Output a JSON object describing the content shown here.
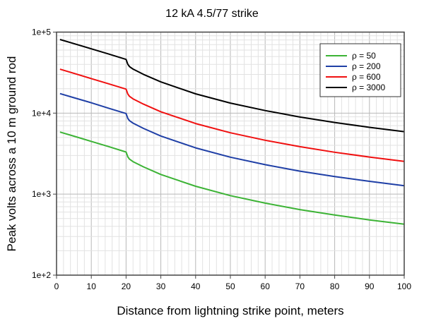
{
  "chart_data": {
    "type": "line",
    "title": "12 kA 4.5/77 strike",
    "xlabel": "Distance from lightning strike point, meters",
    "ylabel": "Peak volts across a 10 m ground rod",
    "xlim": [
      0,
      100
    ],
    "ylim": [
      100,
      100000
    ],
    "yscale": "log",
    "grid": true,
    "legend_position": "top-right",
    "x_ticks": [
      "0",
      "10",
      "20",
      "30",
      "40",
      "50",
      "60",
      "70",
      "80",
      "90",
      "100"
    ],
    "y_ticks": [
      "1e+2",
      "1e+3",
      "1e+4",
      "1e+5"
    ],
    "x": [
      1,
      5,
      10,
      15,
      20,
      20.5,
      21,
      22,
      25,
      30,
      40,
      50,
      60,
      70,
      80,
      90,
      100
    ],
    "series": [
      {
        "name": "ρ = 50",
        "color": "#3cb335",
        "values": [
          5830,
          5190,
          4480,
          3860,
          3310,
          2880,
          2700,
          2520,
          2170,
          1750,
          1250,
          958,
          774,
          644,
          552,
          481,
          425
        ]
      },
      {
        "name": "ρ = 200",
        "color": "#1f3fa6",
        "values": [
          17400,
          15500,
          13400,
          11500,
          9890,
          8600,
          8060,
          7530,
          6470,
          5220,
          3720,
          2860,
          2310,
          1920,
          1650,
          1440,
          1270
        ]
      },
      {
        "name": "ρ = 600",
        "color": "#f01010",
        "values": [
          34800,
          31000,
          26700,
          23000,
          19800,
          17200,
          16100,
          15000,
          12900,
          10400,
          7440,
          5720,
          4620,
          3850,
          3290,
          2870,
          2540
        ]
      },
      {
        "name": "ρ = 3000",
        "color": "#000000",
        "values": [
          81000,
          72100,
          62200,
          53600,
          46000,
          40000,
          37500,
          35000,
          30100,
          24300,
          17300,
          13300,
          10750,
          8950,
          7660,
          6680,
          5900
        ]
      }
    ]
  }
}
